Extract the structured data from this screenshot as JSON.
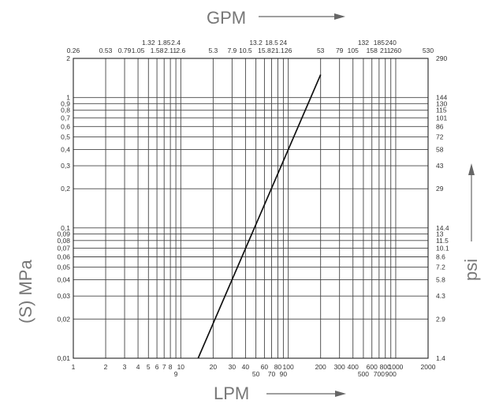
{
  "chart_data": {
    "type": "line",
    "title": "",
    "top_axis_label": "GPM",
    "xlabel": "LPM",
    "ylabel": "(S) MPa",
    "right_axis_label": "psi",
    "x_scale": "log",
    "y_scale": "log",
    "xlim": [
      1,
      2000
    ],
    "ylim": [
      0.01,
      2
    ],
    "grid": true,
    "x_ticks": [
      {
        "value": 1,
        "label": "1"
      },
      {
        "value": 2,
        "label": "2"
      },
      {
        "value": 3,
        "label": "3"
      },
      {
        "value": 4,
        "label": "4"
      },
      {
        "value": 5,
        "label": "5"
      },
      {
        "value": 6,
        "label": "6"
      },
      {
        "value": 7,
        "label": "7"
      },
      {
        "value": 8,
        "label": "8"
      },
      {
        "value": 9,
        "label": "9"
      },
      {
        "value": 10,
        "label": "10"
      },
      {
        "value": 20,
        "label": "20"
      },
      {
        "value": 30,
        "label": "30"
      },
      {
        "value": 40,
        "label": "40"
      },
      {
        "value": 50,
        "label": "50"
      },
      {
        "value": 60,
        "label": "60"
      },
      {
        "value": 70,
        "label": "70"
      },
      {
        "value": 80,
        "label": "80"
      },
      {
        "value": 90,
        "label": "90"
      },
      {
        "value": 100,
        "label": "100"
      },
      {
        "value": 200,
        "label": "200"
      },
      {
        "value": 300,
        "label": "300"
      },
      {
        "value": 400,
        "label": "400"
      },
      {
        "value": 500,
        "label": "500"
      },
      {
        "value": 600,
        "label": "600"
      },
      {
        "value": 700,
        "label": "700"
      },
      {
        "value": 800,
        "label": "800"
      },
      {
        "value": 900,
        "label": "900"
      },
      {
        "value": 1000,
        "label": "1000"
      },
      {
        "value": 2000,
        "label": "2000"
      }
    ],
    "top_ticks": [
      {
        "value": 1,
        "label": "0.26"
      },
      {
        "value": 2,
        "label": "0.53"
      },
      {
        "value": 3,
        "label": "0.79"
      },
      {
        "value": 4,
        "label": "1.05"
      },
      {
        "value": 5,
        "label": "1.32"
      },
      {
        "value": 6,
        "label": "1.58"
      },
      {
        "value": 7,
        "label": "1.85"
      },
      {
        "value": 8,
        "label": "2.11"
      },
      {
        "value": 9,
        "label": "2.4"
      },
      {
        "value": 10,
        "label": "2.6"
      },
      {
        "value": 20,
        "label": "5.3"
      },
      {
        "value": 30,
        "label": "7.9"
      },
      {
        "value": 40,
        "label": "10.5"
      },
      {
        "value": 50,
        "label": "13.2"
      },
      {
        "value": 60,
        "label": "15.8"
      },
      {
        "value": 70,
        "label": "18.5"
      },
      {
        "value": 80,
        "label": "21.1"
      },
      {
        "value": 90,
        "label": "24"
      },
      {
        "value": 100,
        "label": "26"
      },
      {
        "value": 200,
        "label": "53"
      },
      {
        "value": 300,
        "label": "79"
      },
      {
        "value": 400,
        "label": "105"
      },
      {
        "value": 500,
        "label": "132"
      },
      {
        "value": 600,
        "label": "158"
      },
      {
        "value": 700,
        "label": "185"
      },
      {
        "value": 800,
        "label": "211"
      },
      {
        "value": 900,
        "label": "240"
      },
      {
        "value": 1000,
        "label": "260"
      },
      {
        "value": 2000,
        "label": "530"
      }
    ],
    "y_ticks": [
      {
        "value": 0.01,
        "label": "0,01"
      },
      {
        "value": 0.02,
        "label": "0,02"
      },
      {
        "value": 0.03,
        "label": "0,03"
      },
      {
        "value": 0.04,
        "label": "0,04"
      },
      {
        "value": 0.05,
        "label": "0,05"
      },
      {
        "value": 0.06,
        "label": "0,06"
      },
      {
        "value": 0.07,
        "label": "0,07"
      },
      {
        "value": 0.08,
        "label": "0,08"
      },
      {
        "value": 0.09,
        "label": "0,09"
      },
      {
        "value": 0.1,
        "label": "0,1"
      },
      {
        "value": 0.2,
        "label": "0,2"
      },
      {
        "value": 0.3,
        "label": "0,3"
      },
      {
        "value": 0.4,
        "label": "0,4"
      },
      {
        "value": 0.5,
        "label": "0,5"
      },
      {
        "value": 0.6,
        "label": "0,6"
      },
      {
        "value": 0.7,
        "label": "0,7"
      },
      {
        "value": 0.8,
        "label": "0,8"
      },
      {
        "value": 0.9,
        "label": "0,9"
      },
      {
        "value": 1,
        "label": "1"
      },
      {
        "value": 2,
        "label": "2"
      }
    ],
    "right_ticks": [
      {
        "value": 0.01,
        "label": "1.4"
      },
      {
        "value": 0.02,
        "label": "2.9"
      },
      {
        "value": 0.03,
        "label": "4.3"
      },
      {
        "value": 0.04,
        "label": "5.8"
      },
      {
        "value": 0.05,
        "label": "7.2"
      },
      {
        "value": 0.06,
        "label": "8.6"
      },
      {
        "value": 0.07,
        "label": "10.1"
      },
      {
        "value": 0.08,
        "label": "11.5"
      },
      {
        "value": 0.09,
        "label": "13"
      },
      {
        "value": 0.1,
        "label": "14.4"
      },
      {
        "value": 0.2,
        "label": "29"
      },
      {
        "value": 0.3,
        "label": "43"
      },
      {
        "value": 0.4,
        "label": "58"
      },
      {
        "value": 0.5,
        "label": "72"
      },
      {
        "value": 0.6,
        "label": "86"
      },
      {
        "value": 0.7,
        "label": "101"
      },
      {
        "value": 0.8,
        "label": "115"
      },
      {
        "value": 0.9,
        "label": "130"
      },
      {
        "value": 1,
        "label": "144"
      },
      {
        "value": 2,
        "label": "290"
      }
    ],
    "series": [
      {
        "points": [
          {
            "x": 14.5,
            "y": 0.01
          },
          {
            "x": 200,
            "y": 1.5
          }
        ]
      }
    ]
  }
}
